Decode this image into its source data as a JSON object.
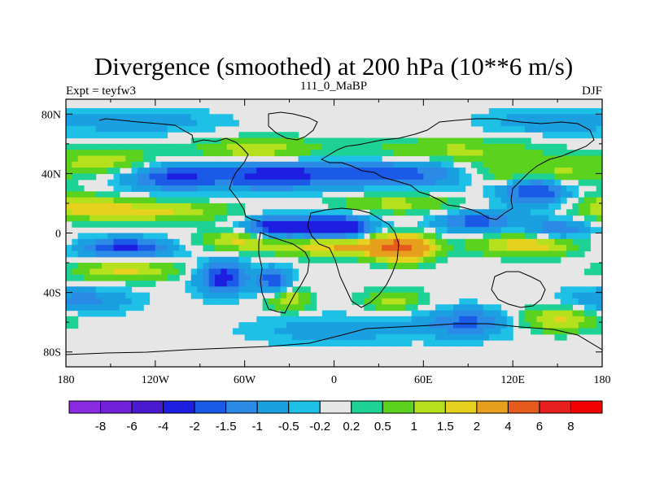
{
  "chart_data": {
    "type": "heatmap",
    "title": "Divergence (smoothed) at 200 hPa (10**6 m/s)",
    "subtitle_left": "Expt = teyfw3",
    "subtitle_center": "111_0_MaBP",
    "subtitle_right": "DJF",
    "x_range": [
      -180,
      180
    ],
    "y_range": [
      -90,
      90
    ],
    "x_ticks": [
      {
        "value": -180,
        "label": "180"
      },
      {
        "value": -120,
        "label": "120W"
      },
      {
        "value": -60,
        "label": "60W"
      },
      {
        "value": 0,
        "label": "0"
      },
      {
        "value": 60,
        "label": "60E"
      },
      {
        "value": 120,
        "label": "120E"
      },
      {
        "value": 180,
        "label": "180"
      }
    ],
    "y_ticks": [
      {
        "value": 80,
        "label": "80N"
      },
      {
        "value": 40,
        "label": "40N"
      },
      {
        "value": 0,
        "label": "0"
      },
      {
        "value": -40,
        "label": "40S"
      },
      {
        "value": -80,
        "label": "80S"
      }
    ],
    "colorbar": {
      "levels": [
        "-8",
        "-6",
        "-4",
        "-2",
        "-1.5",
        "-1",
        "-0.5",
        "-0.2",
        "0.2",
        "0.5",
        "1",
        "1.5",
        "2",
        "4",
        "6",
        "8"
      ],
      "colors": [
        "#8a2be2",
        "#7020d8",
        "#4a1ad0",
        "#1e1ee0",
        "#1a5ae6",
        "#2a8ae6",
        "#1aa0e0",
        "#1ec0e6",
        "#e6e6e6",
        "#1ed296",
        "#5ad21e",
        "#b4e01e",
        "#e6d21e",
        "#e6a01e",
        "#e65a1e",
        "#e61e1e",
        "#f00000"
      ]
    },
    "fields": [
      {
        "lon": 0,
        "lat": 3,
        "value": -3.5,
        "slon": 18,
        "slat": 6
      },
      {
        "lon": -40,
        "lat": 3,
        "value": -2.6,
        "slon": 15,
        "slat": 6
      },
      {
        "lon": -140,
        "lat": -10,
        "value": -2.2,
        "slon": 22,
        "slat": 5
      },
      {
        "lon": 95,
        "lat": 8,
        "value": -1.8,
        "slon": 20,
        "slat": 5
      },
      {
        "lon": 150,
        "lat": 2,
        "value": -1.6,
        "slon": 15,
        "slat": 5
      },
      {
        "lon": 50,
        "lat": 40,
        "value": -1.8,
        "slon": 40,
        "slat": 7
      },
      {
        "lon": -40,
        "lat": 40,
        "value": -2.2,
        "slon": 30,
        "slat": 8
      },
      {
        "lon": 135,
        "lat": 30,
        "value": -2.4,
        "slon": 16,
        "slat": 8
      },
      {
        "lon": -110,
        "lat": 38,
        "value": -2.0,
        "slon": 25,
        "slat": 7
      },
      {
        "lon": -75,
        "lat": -30,
        "value": -2.4,
        "slon": 12,
        "slat": 8
      },
      {
        "lon": -40,
        "lat": -32,
        "value": -2.0,
        "slon": 8,
        "slat": 6
      },
      {
        "lon": 90,
        "lat": -60,
        "value": -1.6,
        "slon": 22,
        "slat": 7
      },
      {
        "lon": 45,
        "lat": -10,
        "value": 4.5,
        "slon": 14,
        "slat": 6
      },
      {
        "lon": 0,
        "lat": -8,
        "value": 2.5,
        "slon": 25,
        "slat": 5
      },
      {
        "lon": 130,
        "lat": -8,
        "value": 2.0,
        "slon": 25,
        "slat": 5
      },
      {
        "lon": -60,
        "lat": -5,
        "value": 1.8,
        "slon": 20,
        "slat": 5
      },
      {
        "lon": 130,
        "lat": 40,
        "value": 2.0,
        "slon": 30,
        "slat": 6
      },
      {
        "lon": -120,
        "lat": 15,
        "value": 1.6,
        "slon": 35,
        "slat": 5
      },
      {
        "lon": -170,
        "lat": 18,
        "value": 1.4,
        "slon": 20,
        "slat": 6
      },
      {
        "lon": 40,
        "lat": 20,
        "value": 1.2,
        "slon": 30,
        "slat": 5
      },
      {
        "lon": -150,
        "lat": 48,
        "value": 1.4,
        "slon": 25,
        "slat": 6
      },
      {
        "lon": -50,
        "lat": 55,
        "value": 1.6,
        "slon": 30,
        "slat": 6
      },
      {
        "lon": 80,
        "lat": 55,
        "value": 1.2,
        "slon": 40,
        "slat": 6
      },
      {
        "lon": -140,
        "lat": -25,
        "value": 1.6,
        "slon": 25,
        "slat": 5
      },
      {
        "lon": -30,
        "lat": -45,
        "value": 1.4,
        "slon": 10,
        "slat": 6
      },
      {
        "lon": 150,
        "lat": -58,
        "value": 1.6,
        "slon": 20,
        "slat": 6
      },
      {
        "lon": 40,
        "lat": -45,
        "value": 1.2,
        "slon": 15,
        "slat": 5
      },
      {
        "lon": -130,
        "lat": 75,
        "value": -0.8,
        "slon": 40,
        "slat": 6
      },
      {
        "lon": 140,
        "lat": 75,
        "value": -0.8,
        "slon": 30,
        "slat": 6
      },
      {
        "lon": -170,
        "lat": -45,
        "value": -1.2,
        "slon": 25,
        "slat": 6
      },
      {
        "lon": 0,
        "lat": -65,
        "value": -0.8,
        "slon": 40,
        "slat": 7
      }
    ]
  }
}
